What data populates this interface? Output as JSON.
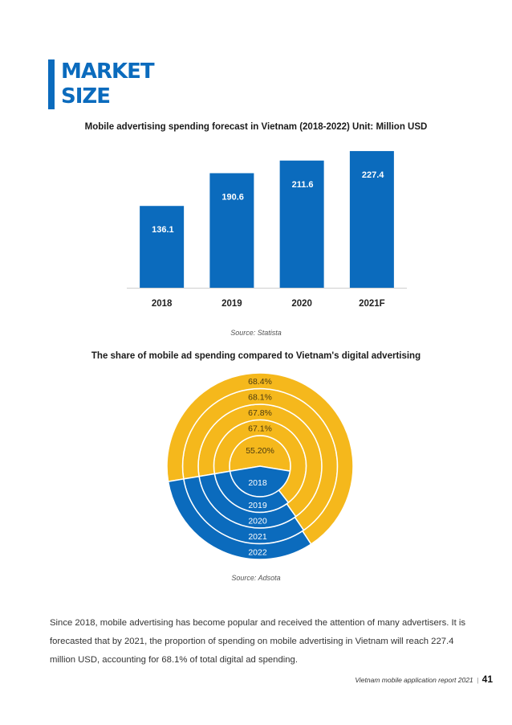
{
  "header": {
    "title_line1": "MARKET",
    "title_line2": "SIZE"
  },
  "colors": {
    "accent": "#0b6bbd",
    "bar": "#0b6bbd",
    "ring_yellow": "#f5b81c",
    "ring_blue": "#0b6bbd"
  },
  "bar_chart": {
    "title": "Mobile advertising spending forecast in Vietnam (2018-2022) Unit: Million USD",
    "source": "Source: Statista"
  },
  "ring_chart": {
    "title": "The share of mobile ad spending compared to Vietnam's digital advertising",
    "source": "Source: Adsota"
  },
  "chart_data": [
    {
      "type": "bar",
      "title": "Mobile advertising spending forecast in Vietnam (2018-2022) Unit: Million USD",
      "categories": [
        "2018",
        "2019",
        "2020",
        "2021F"
      ],
      "values": [
        136.1,
        190.6,
        211.6,
        227.4
      ],
      "value_labels": [
        "136.1",
        "190.6",
        "211.6",
        "227.4"
      ],
      "ylim": [
        0,
        230
      ],
      "grid": false
    },
    {
      "type": "pie",
      "title": "The share of mobile ad spending compared to Vietnam's digital advertising",
      "rings": [
        {
          "year": "2018",
          "share": 55.2,
          "label": "55.20%"
        },
        {
          "year": "2019",
          "share": 67.1,
          "label": "67.1%"
        },
        {
          "year": "2020",
          "share": 67.8,
          "label": "67.8%"
        },
        {
          "year": "2021",
          "share": 68.1,
          "label": "68.1%"
        },
        {
          "year": "2022",
          "share": 68.4,
          "label": "68.4%"
        }
      ]
    }
  ],
  "body_text": "Since 2018, mobile advertising has become popular and received the attention of many advertisers. It is forecasted that by 2021, the proportion of spending on mobile advertising in Vietnam will reach 227.4 million USD, accounting for 68.1% of total digital ad spending.",
  "footer": {
    "report_title": "Vietnam mobile application report 2021",
    "separator": "|",
    "page_number": "41"
  }
}
